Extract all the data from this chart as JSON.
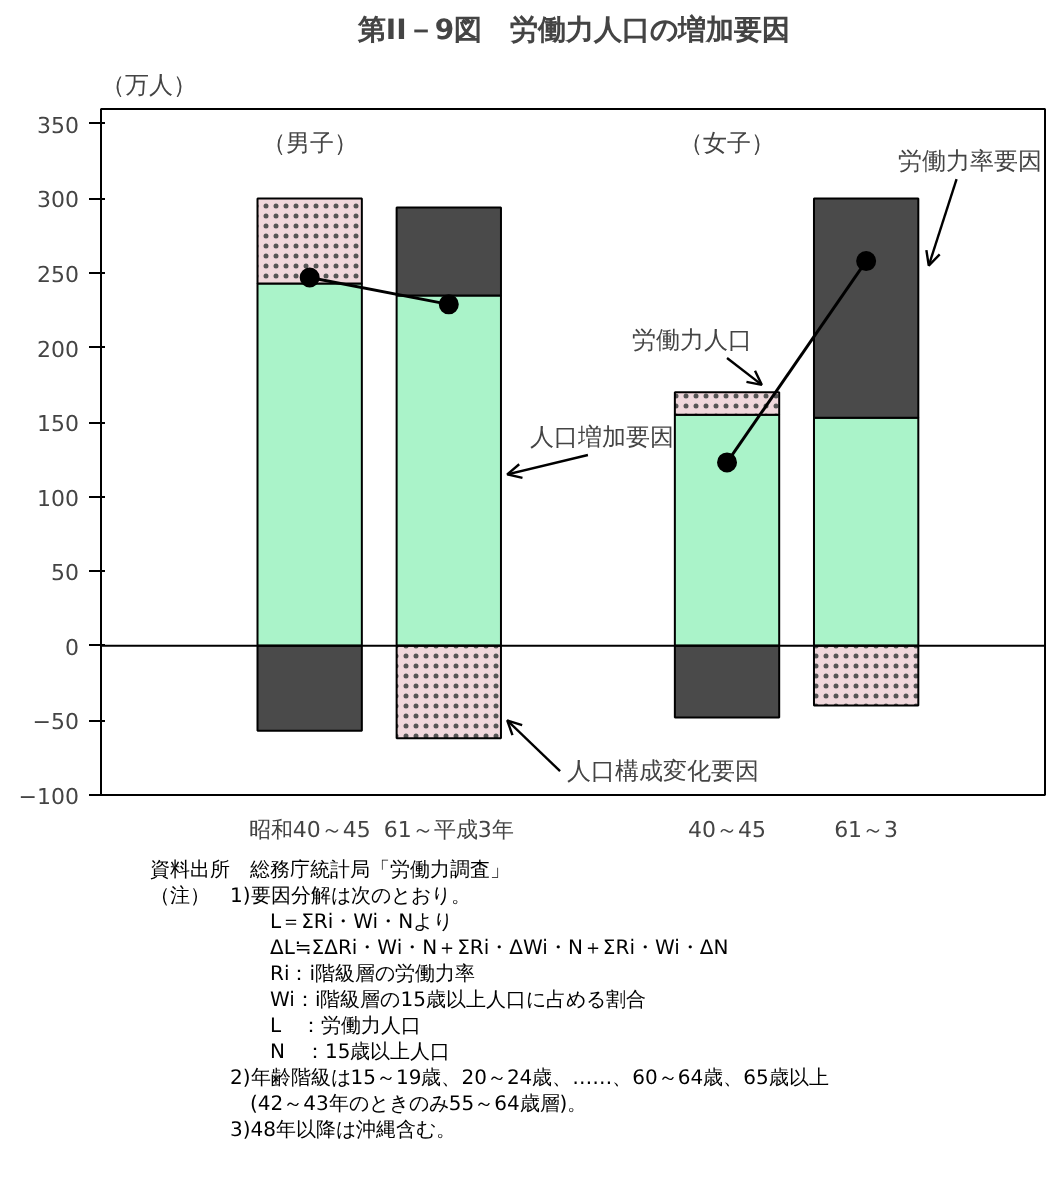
{
  "chart_data": {
    "type": "bar",
    "title": "第II－9図　労働力人口の増加要因",
    "ylabel": "（万人）",
    "categories": [
      "昭和40～45",
      "61～平成3年",
      null,
      "40～45",
      "61～3"
    ],
    "stacked": true,
    "ylim": [
      -100,
      360
    ],
    "yticks": [
      -100,
      -50,
      0,
      50,
      100,
      150,
      200,
      250,
      300,
      350
    ],
    "grid": false,
    "series": [
      {
        "name": "人口増加要因",
        "color": "#aaf3c9",
        "values": [
          243,
          235,
          null,
          155,
          153
        ]
      },
      {
        "name": "人口構成変化要因",
        "color": "#f0d8dc",
        "values": [
          57,
          -62,
          null,
          15,
          -40
        ]
      },
      {
        "name": "労働力率要因",
        "color": "#4a4a4a",
        "values": [
          -57,
          59,
          null,
          -48,
          147
        ]
      },
      {
        "name": "労働力人口",
        "type": "line",
        "color": "#000000",
        "marker": "circle",
        "values": [
          247,
          229,
          null,
          123,
          258
        ]
      }
    ],
    "ref_lines": [
      {
        "axis": "y",
        "value": 0
      }
    ],
    "annotations": [
      "（男子）",
      "（女子）",
      "資料出所　総務庁統計局「労働力調査」",
      "（注）　1)要因分解は次のとおり。",
      "　　　　　　L＝ΣRi・Wi・Nより",
      "　　　　　　ΔL≒ΣΔRi・Wi・N＋ΣRi・ΔWi・N＋ΣRi・Wi・ΔN",
      "　　　　　　Ri：i階級層の労働力率",
      "　　　　　　Wi：i階級層の15歳以上人口に占める割合",
      "　　　　　　L　：労働力人口",
      "　　　　　　N　：15歳以上人口",
      "　　　　2)年齢階級は15～19歳、20～24歳、……、60～64歳、65歳以上",
      "　　　　　(42～43年のときのみ55～64歳層)。",
      "　　　　3)48年以降は沖縄含む。"
    ]
  }
}
